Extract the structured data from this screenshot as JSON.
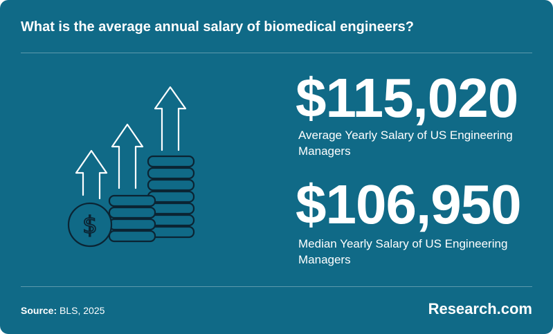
{
  "header": {
    "title": "What is the average annual salary of biomedical engineers?"
  },
  "stats": [
    {
      "value": "$115,020",
      "label": "Average Yearly Salary of US Engineering Managers"
    },
    {
      "value": "$106,950",
      "label": "Median Yearly Salary of US Engineering Managers"
    }
  ],
  "footer": {
    "source_label": "Source:",
    "source_text": "BLS, 2025",
    "brand": "Research.com"
  },
  "illustration": {
    "icon": "salary-growth-coins-arrows-icon",
    "coin_symbol": "$"
  },
  "colors": {
    "background": "#106a87",
    "text": "#ffffff",
    "divider": "#5d9aad",
    "icon_stroke": "#ffffff",
    "icon_dark_stroke": "#0b2433"
  }
}
